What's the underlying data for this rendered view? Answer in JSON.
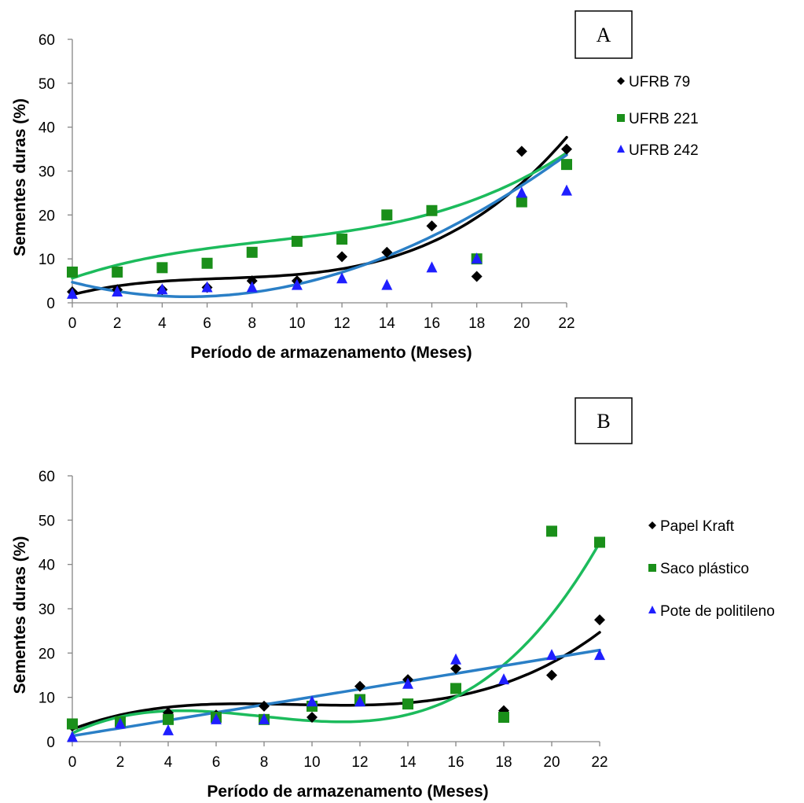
{
  "chart_data": [
    {
      "panel_label": "A",
      "type": "scatter",
      "xlabel": "Período de armazenamento (Meses)",
      "ylabel": "Sementes duras (%)",
      "xlim": [
        0,
        22
      ],
      "ylim": [
        0,
        60
      ],
      "xticks": [
        "0",
        "2",
        "4",
        "6",
        "8",
        "10",
        "12",
        "14",
        "16",
        "18",
        "20",
        "22"
      ],
      "yticks": [
        "0",
        "10",
        "20",
        "30",
        "40",
        "50",
        "60"
      ],
      "grid": false,
      "legend_position": "right",
      "series": [
        {
          "name": "UFRB 79",
          "marker": "diamond",
          "color": "#000000",
          "trend_color": "#000000",
          "x": [
            0,
            2,
            4,
            6,
            8,
            10,
            12,
            14,
            16,
            18,
            20,
            22
          ],
          "y": [
            2.5,
            3,
            3,
            3.5,
            5,
            5,
            10.5,
            11.5,
            17.5,
            6,
            34.5,
            35
          ],
          "trend_poly": [
            1.85,
            1.29,
            -0.165,
            0.0082
          ]
        },
        {
          "name": "UFRB 221",
          "marker": "square",
          "color": "#1a8f1a",
          "trend_color": "#1cbb5c",
          "x": [
            0,
            2,
            4,
            6,
            8,
            10,
            12,
            14,
            16,
            18,
            20,
            22
          ],
          "y": [
            7,
            7,
            8,
            9,
            11.5,
            14,
            14.5,
            20,
            21,
            10,
            23,
            31.5
          ],
          "trend_poly": [
            5.6,
            1.75,
            -0.135,
            0.0052
          ]
        },
        {
          "name": "UFRB 242",
          "marker": "triangle",
          "color": "#1f1fff",
          "trend_color": "#2a7fc6",
          "x": [
            0,
            2,
            4,
            6,
            8,
            10,
            12,
            14,
            16,
            18,
            20,
            22
          ],
          "y": [
            2,
            2.5,
            3,
            3.5,
            3.5,
            4,
            5.5,
            4,
            8,
            10,
            25,
            25.5
          ],
          "trend_poly": [
            4.7,
            -1.3,
            0.13,
            -0.0005
          ]
        }
      ]
    },
    {
      "panel_label": "B",
      "type": "scatter",
      "xlabel": "Período de armazenamento (Meses)",
      "ylabel": "Sementes duras (%)",
      "xlim": [
        0,
        22
      ],
      "ylim": [
        0,
        60
      ],
      "xticks": [
        "0",
        "2",
        "4",
        "6",
        "8",
        "10",
        "12",
        "14",
        "16",
        "18",
        "20",
        "22"
      ],
      "yticks": [
        "0",
        "10",
        "20",
        "30",
        "40",
        "50",
        "60"
      ],
      "grid": false,
      "legend_position": "right",
      "series": [
        {
          "name": "Papel Kraft",
          "marker": "diamond",
          "color": "#000000",
          "trend_color": "#000000",
          "x": [
            0,
            2,
            4,
            6,
            8,
            10,
            12,
            14,
            16,
            18,
            20,
            22
          ],
          "y": [
            3.5,
            4.5,
            6.5,
            6,
            8,
            5.5,
            12.5,
            14,
            16.5,
            7,
            15,
            27.5
          ],
          "trend_poly": [
            2.8,
            2.05,
            -0.235,
            0.0085
          ]
        },
        {
          "name": "Saco plástico",
          "marker": "square",
          "color": "#1a8f1a",
          "trend_color": "#1cbb5c",
          "x": [
            0,
            2,
            4,
            6,
            8,
            10,
            12,
            14,
            16,
            18,
            20,
            22
          ],
          "y": [
            4,
            4.5,
            5,
            5.5,
            5,
            8,
            9.5,
            8.5,
            12,
            5.5,
            47.5,
            45
          ],
          "trend_poly": [
            1.9,
            2.58,
            -0.398,
            0.0168
          ]
        },
        {
          "name": "Pote de politileno",
          "marker": "triangle",
          "color": "#1f1fff",
          "trend_color": "#2a7fc6",
          "x": [
            0,
            2,
            4,
            6,
            8,
            10,
            12,
            14,
            16,
            18,
            20,
            22
          ],
          "y": [
            1,
            4,
            2.5,
            5,
            5,
            9,
            9,
            13,
            18.5,
            14,
            19.5,
            19.5
          ],
          "trend_poly": [
            1.3,
            0.88,
            0,
            0
          ]
        }
      ]
    }
  ]
}
